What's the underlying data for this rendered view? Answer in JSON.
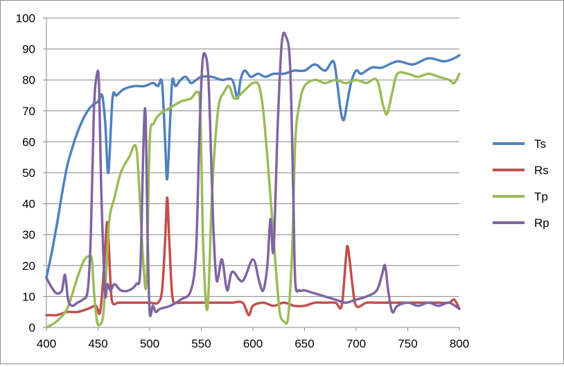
{
  "chart_data": {
    "type": "line",
    "title": "",
    "xlabel": "",
    "ylabel": "",
    "xlim": [
      400,
      800
    ],
    "ylim": [
      0,
      100
    ],
    "x_ticks": [
      400,
      450,
      500,
      550,
      600,
      650,
      700,
      750,
      800
    ],
    "y_ticks": [
      0,
      10,
      20,
      30,
      40,
      50,
      60,
      70,
      80,
      90,
      100
    ],
    "grid": "horizontal",
    "legend_position": "right",
    "series": [
      {
        "name": "Ts",
        "color": "#4f81bd",
        "x": [
          400,
          405,
          410,
          415,
          420,
          425,
          430,
          435,
          440,
          445,
          450,
          454,
          457,
          460,
          464,
          468,
          475,
          485,
          495,
          503,
          508,
          512,
          515,
          517,
          520,
          522,
          525,
          530,
          535,
          540,
          545,
          550,
          560,
          570,
          580,
          585,
          588,
          592,
          598,
          605,
          612,
          620,
          630,
          640,
          650,
          660,
          670,
          678,
          682,
          685,
          688,
          691,
          695,
          700,
          705,
          715,
          725,
          740,
          755,
          770,
          785,
          795,
          800
        ],
        "y": [
          16,
          24,
          33,
          43,
          52,
          58,
          63,
          67,
          70,
          72,
          73,
          75,
          66,
          50,
          74,
          75,
          77,
          78,
          78,
          79,
          78,
          79,
          60,
          48,
          68,
          80,
          78,
          80,
          81,
          79,
          80,
          81,
          81,
          80,
          80,
          74,
          80,
          83,
          81,
          82,
          81,
          82,
          82,
          83,
          83,
          85,
          83,
          86,
          78,
          70,
          67,
          72,
          79,
          83,
          82,
          84,
          84,
          86,
          85,
          87,
          86,
          87,
          88
        ]
      },
      {
        "name": "Rs",
        "color": "#c0504d",
        "x": [
          400,
          410,
          420,
          430,
          440,
          448,
          452,
          456,
          459,
          462,
          464,
          470,
          480,
          490,
          500,
          508,
          512,
          515,
          517,
          519,
          522,
          526,
          530,
          540,
          550,
          560,
          570,
          580,
          590,
          596,
          600,
          610,
          620,
          630,
          640,
          650,
          660,
          670,
          680,
          686,
          690,
          692,
          696,
          700,
          710,
          720,
          730,
          740,
          750,
          760,
          770,
          780,
          790,
          795,
          800
        ],
        "y": [
          4,
          4,
          5,
          5,
          6,
          7,
          5,
          20,
          34,
          15,
          8,
          8,
          8,
          8,
          8,
          8,
          12,
          28,
          42,
          28,
          10,
          8,
          8,
          8,
          8,
          8,
          8,
          8,
          8,
          4,
          7,
          8,
          7,
          8,
          7,
          7,
          8,
          8,
          8,
          7,
          22,
          26,
          15,
          7,
          8,
          8,
          8,
          8,
          8,
          8,
          8,
          8,
          8,
          9,
          6
        ]
      },
      {
        "name": "Tp",
        "color": "#9bbb59",
        "x": [
          400,
          410,
          420,
          428,
          433,
          437,
          441,
          444,
          446,
          449,
          452,
          455,
          458,
          461,
          466,
          472,
          480,
          487,
          491,
          494,
          497,
          500,
          504,
          510,
          520,
          530,
          540,
          546,
          549,
          552,
          556,
          560,
          563,
          567,
          572,
          577,
          582,
          590,
          600,
          606,
          610,
          614,
          618,
          622,
          626,
          630,
          634,
          638,
          641,
          645,
          650,
          660,
          670,
          680,
          690,
          700,
          710,
          720,
          726,
          730,
          735,
          740,
          750,
          760,
          770,
          780,
          790,
          795,
          800
        ],
        "y": [
          0,
          2,
          6,
          14,
          19,
          22,
          23,
          22,
          12,
          2,
          1,
          4,
          18,
          35,
          42,
          50,
          55,
          58,
          38,
          20,
          15,
          60,
          66,
          69,
          71,
          73,
          74,
          76,
          70,
          25,
          6,
          40,
          58,
          72,
          76,
          78,
          74,
          76,
          79,
          78,
          70,
          55,
          38,
          20,
          5,
          2,
          3,
          25,
          60,
          72,
          78,
          80,
          79,
          80,
          79,
          80,
          79,
          80,
          72,
          69,
          76,
          82,
          82,
          81,
          82,
          81,
          80,
          79,
          82
        ]
      },
      {
        "name": "Rp",
        "color": "#8064a2",
        "x": [
          400,
          405,
          410,
          415,
          418,
          421,
          425,
          430,
          435,
          440,
          443,
          446,
          449,
          451,
          453,
          455,
          457,
          459,
          462,
          466,
          472,
          480,
          487,
          491,
          494,
          496,
          498,
          500,
          503,
          506,
          510,
          520,
          530,
          540,
          545,
          548,
          551,
          554,
          557,
          560,
          562,
          565,
          570,
          575,
          580,
          590,
          600,
          606,
          610,
          614,
          617,
          620,
          624,
          628,
          632,
          636,
          639,
          641,
          645,
          650,
          660,
          670,
          680,
          690,
          700,
          710,
          720,
          725,
          728,
          731,
          735,
          740,
          750,
          760,
          770,
          780,
          790,
          800
        ],
        "y": [
          16,
          13,
          11,
          12,
          17,
          9,
          7,
          8,
          9,
          12,
          30,
          70,
          82,
          78,
          45,
          25,
          10,
          14,
          12,
          14,
          12,
          12,
          14,
          19,
          60,
          69,
          30,
          5,
          7,
          5,
          6,
          7,
          9,
          12,
          25,
          60,
          85,
          88,
          80,
          50,
          30,
          15,
          22,
          12,
          18,
          15,
          22,
          15,
          12,
          20,
          35,
          25,
          65,
          92,
          94,
          85,
          45,
          15,
          12,
          12,
          11,
          10,
          9,
          8,
          9,
          10,
          12,
          17,
          20,
          12,
          5,
          7,
          8,
          7,
          8,
          7,
          8,
          6
        ]
      }
    ]
  }
}
